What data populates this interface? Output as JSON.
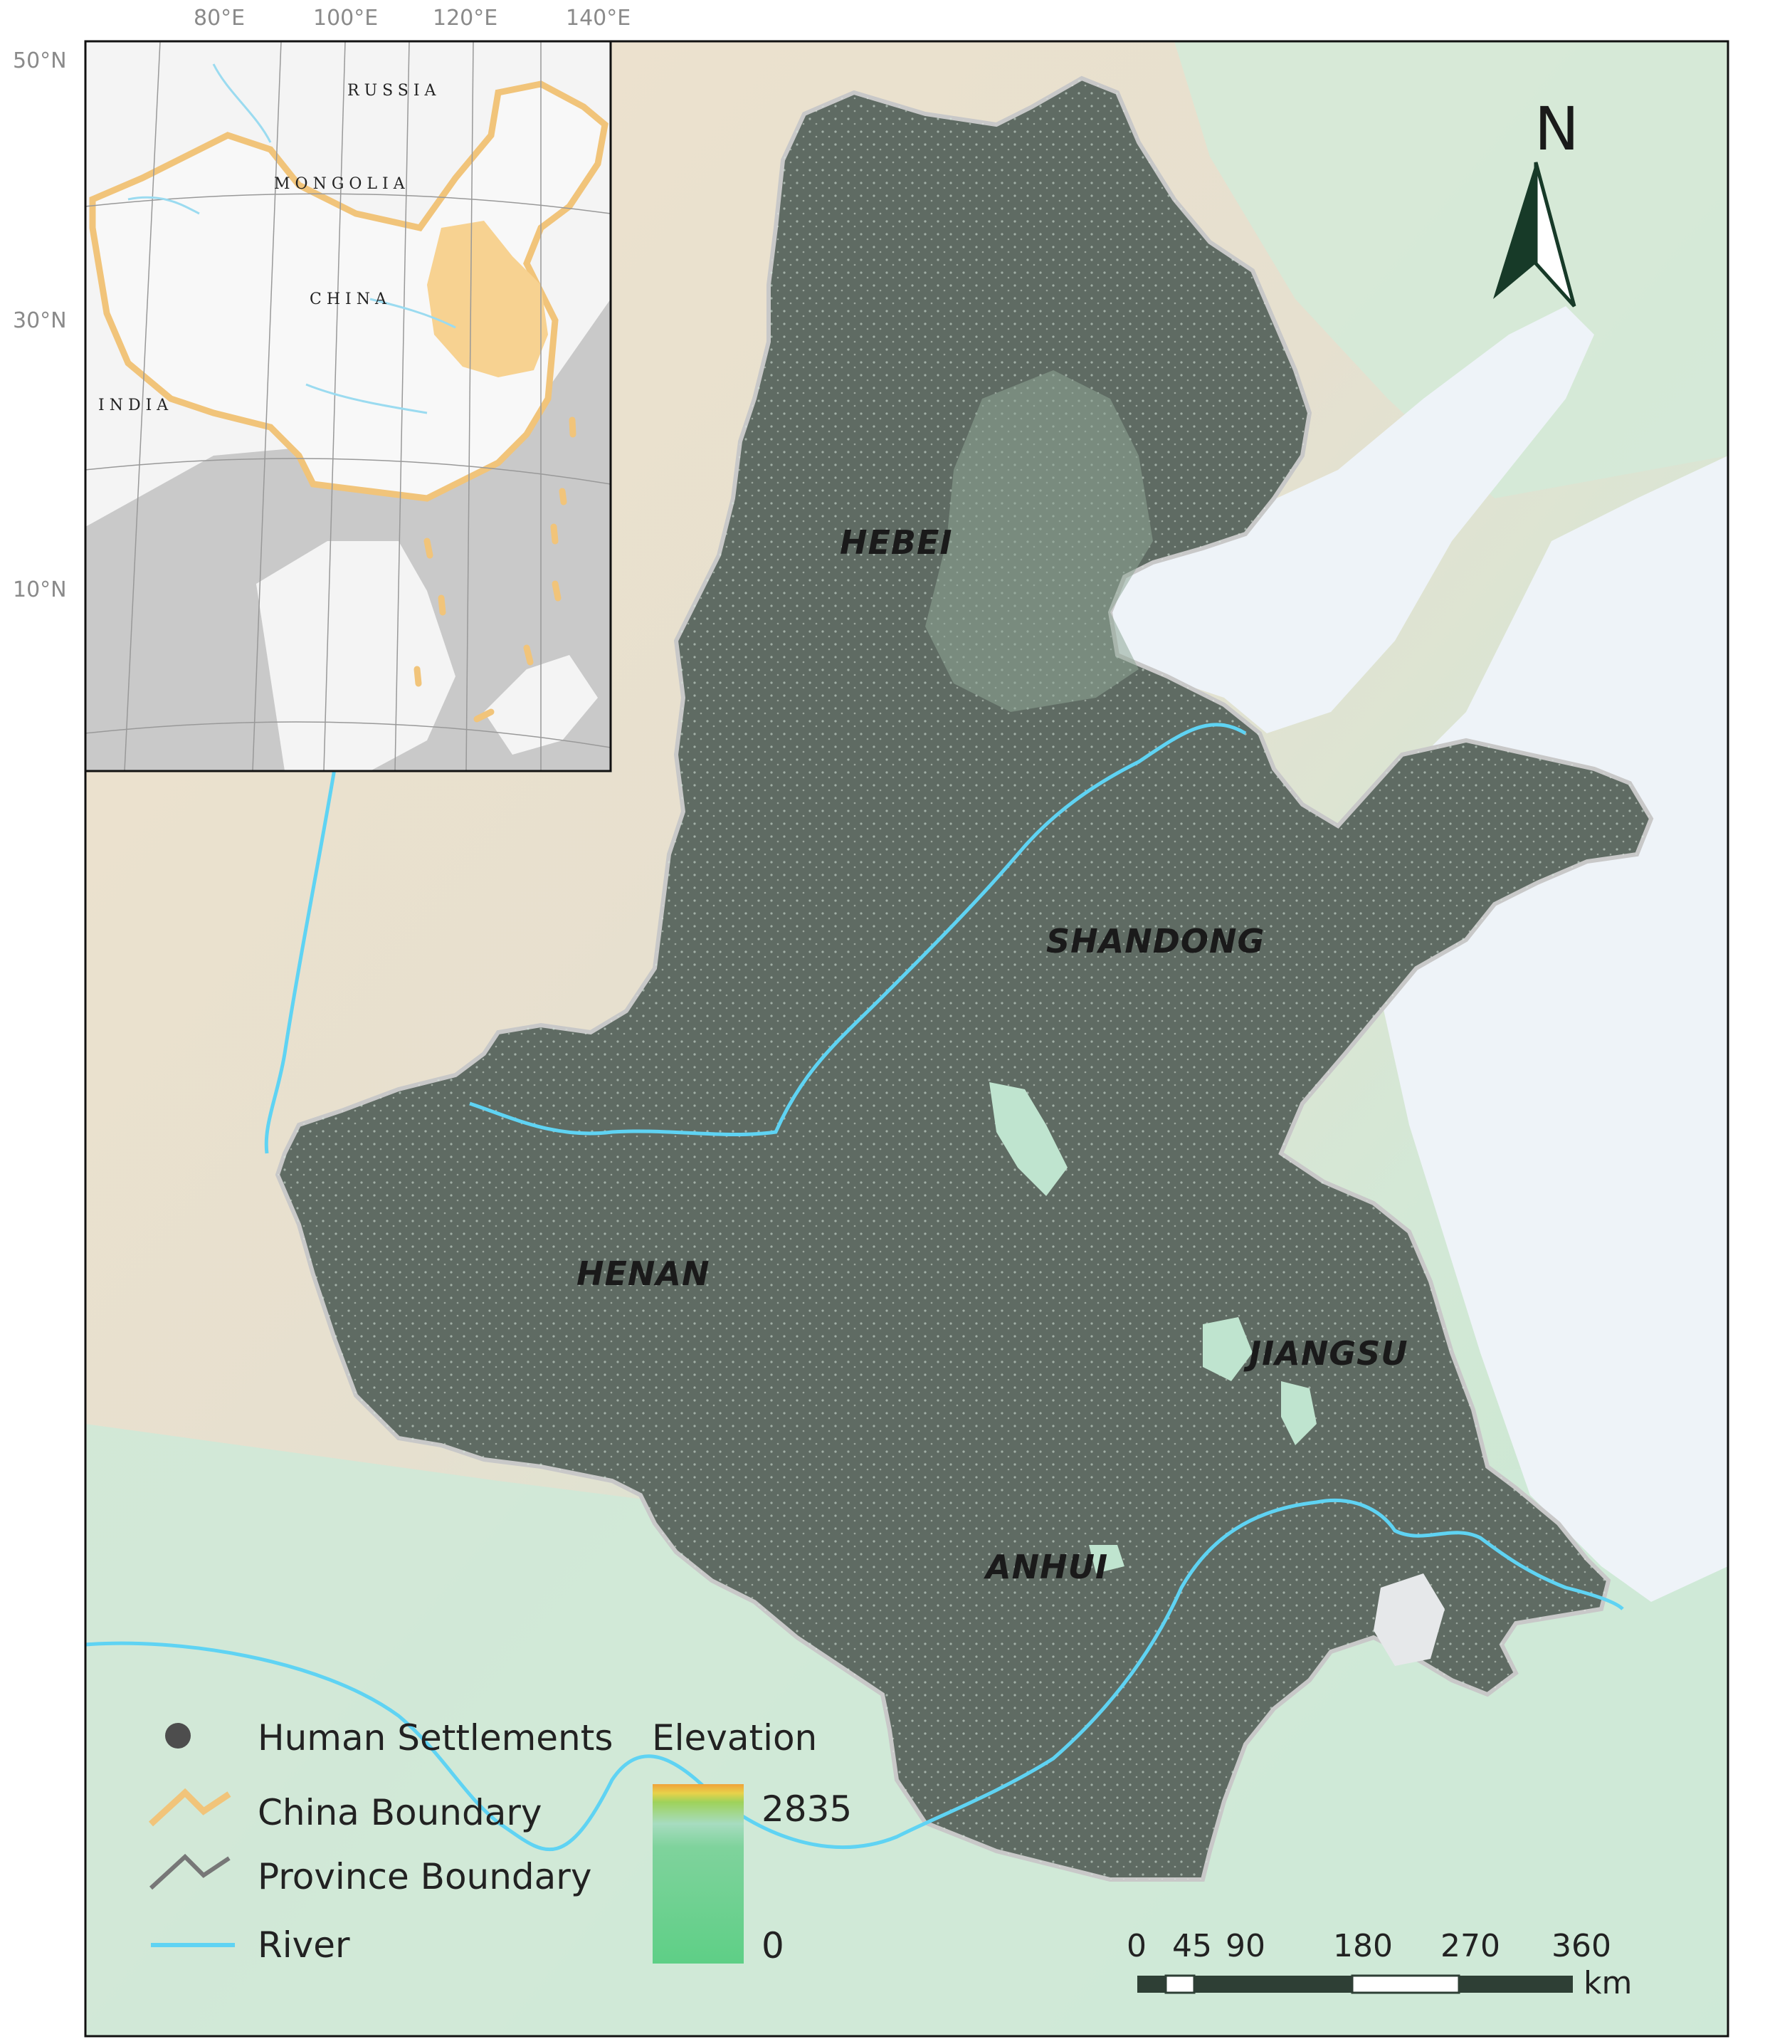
{
  "map": {
    "provinces": [
      "HEBEI",
      "SHANDONG",
      "HENAN",
      "JIANGSU",
      "ANHUI"
    ],
    "north_arrow": "N"
  },
  "inset": {
    "longitude_labels": [
      "80°E",
      "100°E",
      "120°E",
      "140°E"
    ],
    "latitude_labels": [
      "50°N",
      "30°N",
      "10°N"
    ],
    "countries": [
      "RUSSIA",
      "MONGOLIA",
      "CHINA",
      "INDIA"
    ]
  },
  "legend": {
    "items": [
      {
        "label": "Human Settlements",
        "icon": "dot-icon",
        "color": "#4d4d4d"
      },
      {
        "label": "China Boundary",
        "icon": "zigzag-line-icon",
        "color": "#f1c47a"
      },
      {
        "label": "Province Boundary",
        "icon": "zigzag-line-icon",
        "color": "#777777"
      },
      {
        "label": "River",
        "icon": "line-icon",
        "color": "#5fd3f3"
      }
    ],
    "elevation": {
      "title": "Elevation",
      "max": "2835",
      "min": "0"
    }
  },
  "scale_bar": {
    "ticks": [
      "0",
      "45",
      "90",
      "180",
      "270",
      "360"
    ],
    "unit": "km"
  },
  "colors": {
    "study_area": "#5f6b63",
    "lowland": "#bfe4cf",
    "highland": "#eadcc4",
    "sea": "#eef3f8",
    "river": "#5fd3f3",
    "china_boundary": "#f1c47a",
    "highlight": "#f7d291"
  }
}
